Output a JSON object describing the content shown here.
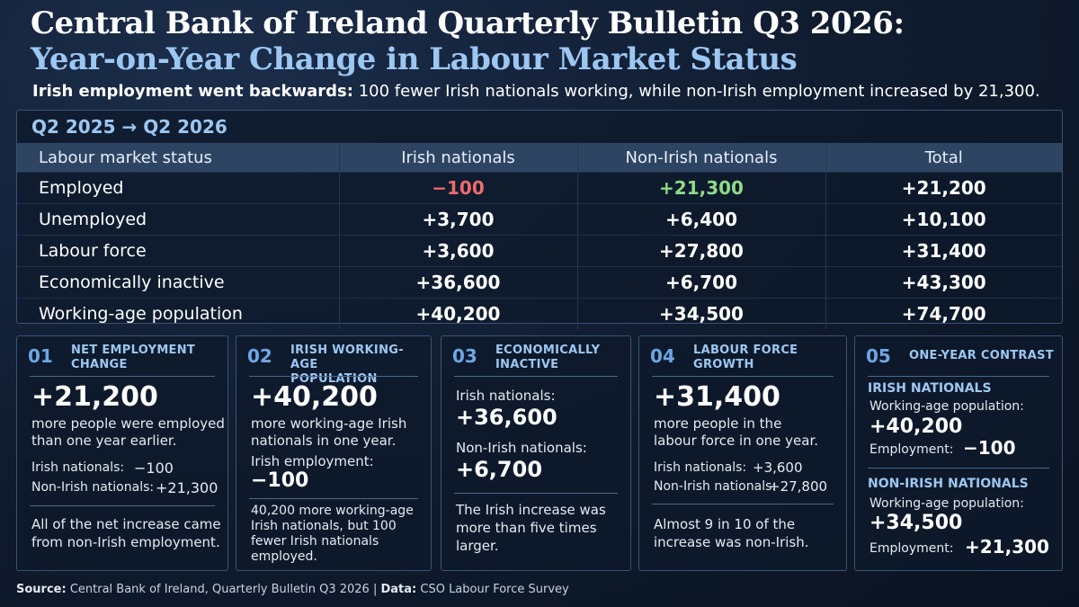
{
  "header": {
    "title_line1": "Central Bank of Ireland Quarterly Bulletin Q3 2026:",
    "title_line2": "Year-on-Year Change in Labour Market Status",
    "subtitle_bold": "Irish employment went backwards:",
    "subtitle_rest": "100 fewer Irish nationals working, while non-Irish employment increased by 21,300."
  },
  "table": {
    "period": "Q2 2025 → Q2 2026",
    "columns": [
      "Labour market status",
      "Irish nationals",
      "Non-Irish nationals",
      "Total"
    ],
    "rows": [
      {
        "status": "Employed",
        "irish": "−100",
        "non_irish": "+21,300",
        "total": "+21,200"
      },
      {
        "status": "Unemployed",
        "irish": "+3,700",
        "non_irish": "+6,400",
        "total": "+10,100"
      },
      {
        "status": "Labour force",
        "irish": "+3,600",
        "non_irish": "+27,800",
        "total": "+31,400"
      },
      {
        "status": "Economically inactive",
        "irish": "+36,600",
        "non_irish": "+6,700",
        "total": "+43,300"
      },
      {
        "status": "Working-age population",
        "irish": "+40,200",
        "non_irish": "+34,500",
        "total": "+74,700"
      }
    ]
  },
  "chart_data": {
    "type": "table",
    "title": "Year-on-Year Change in Labour Market Status",
    "period": "Q2 2025 → Q2 2026",
    "categories": [
      "Employed",
      "Unemployed",
      "Labour force",
      "Economically inactive",
      "Working-age population"
    ],
    "series": [
      {
        "name": "Irish nationals",
        "values": [
          -100,
          3700,
          3600,
          36600,
          40200
        ]
      },
      {
        "name": "Non-Irish nationals",
        "values": [
          21300,
          6400,
          27800,
          6700,
          34500
        ]
      },
      {
        "name": "Total",
        "values": [
          21200,
          10100,
          31400,
          43300,
          74700
        ]
      }
    ]
  },
  "cards": {
    "c1": {
      "num": "01",
      "head_1": "NET EMPLOYMENT",
      "head_2": "CHANGE",
      "big": "+21,200",
      "text_1": "more people were employed",
      "text_2": "than one year earlier.",
      "irish_label": "Irish nationals:",
      "irish_value": "−100",
      "non_irish_label": "Non-Irish nationals:",
      "non_irish_value": "+21,300",
      "note_1": "All of the net increase came",
      "note_2": "from non-Irish employment."
    },
    "c2": {
      "num": "02",
      "head_1": "IRISH WORKING-AGE",
      "head_2": "POPULATION",
      "big": "+40,200",
      "text_1": "more working-age Irish",
      "text_2": "nationals in one year.",
      "emp_label": "Irish employment:",
      "emp_value": "−100",
      "note_1": "40,200 more working-age",
      "note_2": "Irish nationals, but 100",
      "note_3": "fewer Irish nationals",
      "note_4": "employed."
    },
    "c3": {
      "num": "03",
      "head_1": "ECONOMICALLY",
      "head_2": "INACTIVE",
      "irish_label": "Irish nationals:",
      "irish_value": "+36,600",
      "non_irish_label": "Non-Irish nationals:",
      "non_irish_value": "+6,700",
      "note_1": "The Irish increase was",
      "note_2": "more than five times",
      "note_3": "larger."
    },
    "c4": {
      "num": "04",
      "head_1": "LABOUR FORCE",
      "head_2": "GROWTH",
      "big": "+31,400",
      "text_1": "more people in the",
      "text_2": "labour force in one year.",
      "irish_label": "Irish nationals:",
      "irish_value": "+3,600",
      "non_irish_label": "Non-Irish nationals:",
      "non_irish_value": "+27,800",
      "note_1": "Almost 9 in 10 of the",
      "note_2": "increase was non-Irish."
    },
    "c5": {
      "num": "05",
      "head": "ONE-YEAR CONTRAST",
      "irish_heading": "IRISH NATIONALS",
      "irish_pop_label": "Working-age population:",
      "irish_pop_value": "+40,200",
      "irish_emp_label": "Employment:",
      "irish_emp_value": "−100",
      "non_irish_heading": "NON-IRISH NATIONALS",
      "non_irish_pop_label": "Working-age population:",
      "non_irish_pop_value": "+34,500",
      "non_irish_emp_label": "Employment:",
      "non_irish_emp_value": "+21,300"
    }
  },
  "footer": {
    "source_label": "Source:",
    "source_text": "Central Bank of Ireland, Quarterly Bulletin Q3 2026",
    "divider": "|",
    "data_label": "Data:",
    "data_text": "CSO Labour Force Survey"
  },
  "colors": {
    "negative": "#ef6a6a",
    "positive": "#8edb87",
    "accent": "#9cc7f2",
    "background": "#0f1b2e"
  }
}
